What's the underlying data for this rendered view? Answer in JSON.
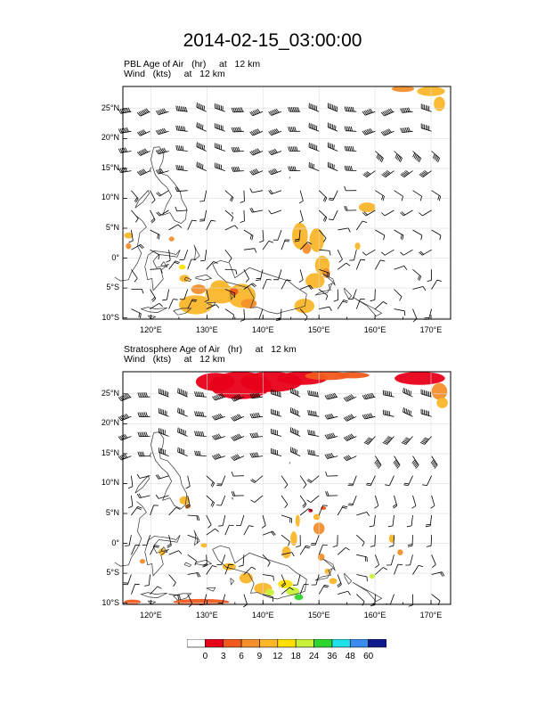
{
  "title": "2014-02-15_03:00:00",
  "panels": [
    {
      "label_line1": "PBL Age of Air   (hr)     at   12 km",
      "label_line2": "Wind   (kts)     at   12 km"
    },
    {
      "label_line1": "Stratosphere Age of Air   (hr)     at   12 km",
      "label_line2": "Wind   (kts)     at   12 km"
    }
  ],
  "axes": {
    "lat_labels": [
      "25°N",
      "20°N",
      "15°N",
      "10°N",
      "5°N",
      "0°",
      "5°S",
      "10°S"
    ],
    "lon_labels": [
      "120°E",
      "130°E",
      "140°E",
      "150°E",
      "160°E",
      "170°E"
    ]
  },
  "colorbar": {
    "labels": [
      "0",
      "3",
      "6",
      "9",
      "12",
      "18",
      "24",
      "36",
      "48",
      "60"
    ],
    "colors": [
      "#ffffff",
      "#e8001a",
      "#f25a1e",
      "#f68f2c",
      "#fbb62a",
      "#ffe000",
      "#c9f03a",
      "#2fd52f",
      "#20e0e8",
      "#3a8cf0",
      "#101a8c"
    ]
  }
}
